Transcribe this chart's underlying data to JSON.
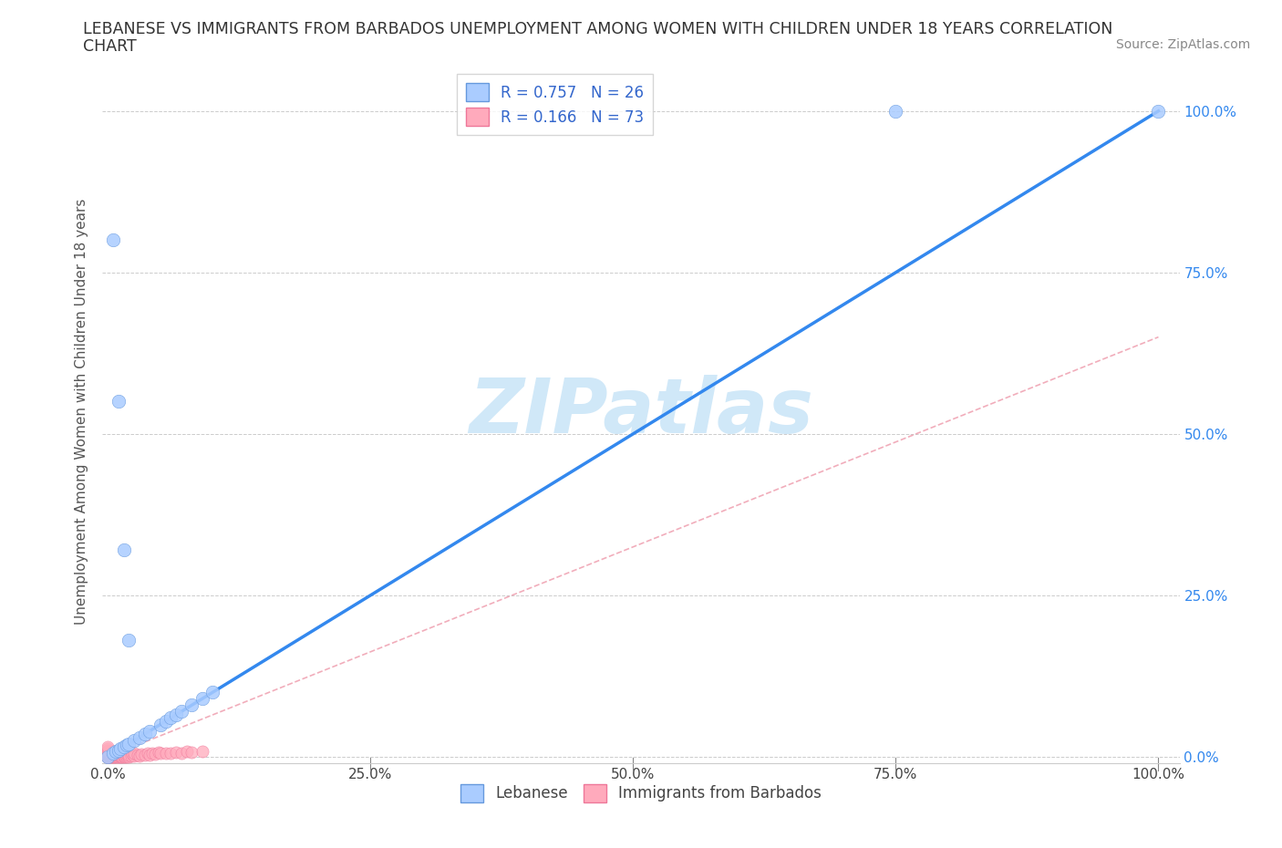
{
  "title_line1": "LEBANESE VS IMMIGRANTS FROM BARBADOS UNEMPLOYMENT AMONG WOMEN WITH CHILDREN UNDER 18 YEARS CORRELATION",
  "title_line2": "CHART",
  "source": "Source: ZipAtlas.com",
  "ylabel": "Unemployment Among Women with Children Under 18 years",
  "xlim": [
    -0.005,
    1.02
  ],
  "ylim": [
    -0.01,
    1.08
  ],
  "xticks": [
    0.0,
    0.25,
    0.5,
    0.75,
    1.0
  ],
  "yticks": [
    0.0,
    0.25,
    0.5,
    0.75,
    1.0
  ],
  "xtick_labels": [
    "0.0%",
    "25.0%",
    "50.0%",
    "75.0%",
    "100.0%"
  ],
  "ytick_labels": [
    "0.0%",
    "25.0%",
    "50.0%",
    "75.0%",
    "100.0%"
  ],
  "lebanese_color": "#aaccff",
  "lebanese_edge": "#6699dd",
  "barbados_color": "#ffaabc",
  "barbados_edge": "#ee7799",
  "blue_line_color": "#3388ee",
  "pink_dash_color": "#ee99aa",
  "grey_dash_color": "#bbbbcc",
  "watermark": "ZIPatlas",
  "watermark_color": "#d0e8f8",
  "legend_R1": "R = 0.757",
  "legend_N1": "N = 26",
  "legend_R2": "R = 0.166",
  "legend_N2": "N = 73",
  "title_fontsize": 12.5,
  "axis_label_fontsize": 11,
  "tick_fontsize": 11,
  "source_fontsize": 10,
  "leb_x": [
    0.0,
    0.005,
    0.008,
    0.01,
    0.012,
    0.015,
    0.018,
    0.02,
    0.025,
    0.03,
    0.035,
    0.04,
    0.05,
    0.055,
    0.06,
    0.065,
    0.07,
    0.08,
    0.09,
    0.1,
    0.005,
    0.01,
    0.015,
    0.02,
    0.75,
    1.0
  ],
  "leb_y": [
    0.0,
    0.005,
    0.008,
    0.01,
    0.012,
    0.015,
    0.018,
    0.02,
    0.025,
    0.03,
    0.035,
    0.04,
    0.05,
    0.055,
    0.06,
    0.065,
    0.07,
    0.08,
    0.09,
    0.1,
    0.8,
    0.55,
    0.32,
    0.18,
    1.0,
    1.0
  ],
  "barb_x": [
    0.0,
    0.0,
    0.0,
    0.0,
    0.0,
    0.0,
    0.0,
    0.0,
    0.0,
    0.0,
    0.0,
    0.0,
    0.0,
    0.0,
    0.0,
    0.0,
    0.0,
    0.0,
    0.0,
    0.0,
    0.002,
    0.002,
    0.003,
    0.003,
    0.004,
    0.004,
    0.005,
    0.005,
    0.006,
    0.006,
    0.007,
    0.007,
    0.008,
    0.008,
    0.009,
    0.009,
    0.01,
    0.01,
    0.01,
    0.012,
    0.012,
    0.013,
    0.013,
    0.014,
    0.015,
    0.015,
    0.016,
    0.017,
    0.018,
    0.019,
    0.02,
    0.02,
    0.022,
    0.023,
    0.025,
    0.025,
    0.028,
    0.03,
    0.032,
    0.035,
    0.038,
    0.04,
    0.042,
    0.045,
    0.048,
    0.05,
    0.055,
    0.06,
    0.065,
    0.07,
    0.075,
    0.08,
    0.09
  ],
  "barb_y": [
    0.0,
    0.0,
    0.0,
    0.0,
    0.0,
    0.002,
    0.002,
    0.003,
    0.003,
    0.004,
    0.004,
    0.005,
    0.005,
    0.006,
    0.007,
    0.008,
    0.009,
    0.01,
    0.012,
    0.015,
    0.0,
    0.002,
    0.0,
    0.002,
    0.0,
    0.002,
    0.0,
    0.003,
    0.0,
    0.002,
    0.0,
    0.002,
    0.0,
    0.002,
    0.0,
    0.003,
    0.0,
    0.002,
    0.004,
    0.0,
    0.002,
    0.0,
    0.003,
    0.0,
    0.0,
    0.002,
    0.0,
    0.002,
    0.0,
    0.002,
    0.0,
    0.003,
    0.002,
    0.004,
    0.002,
    0.005,
    0.003,
    0.002,
    0.004,
    0.003,
    0.005,
    0.003,
    0.006,
    0.004,
    0.007,
    0.005,
    0.006,
    0.005,
    0.007,
    0.006,
    0.008,
    0.007,
    0.009
  ]
}
